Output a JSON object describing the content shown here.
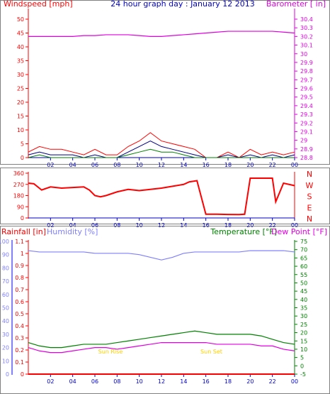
{
  "colors": {
    "wind": "#ff0000",
    "gust_dark": "#000080",
    "wind_green": "#008000",
    "baro": "#e000e0",
    "title": "#0000c8",
    "humidity": "#8080ff",
    "temp": "#008000",
    "dew": "#e000e0",
    "rain": "#ff0000",
    "dirlabels": "#ff0000",
    "xticks": "#0000c8",
    "sun": "#ffd000"
  },
  "chart_data": [
    {
      "type": "line",
      "title": "24 hour graph day : January 12 2013",
      "y_left_label": "Windspeed [mph]",
      "y_right_label": "Barometer [ in]",
      "y_left_ticks": [
        0,
        5,
        10,
        15,
        20,
        25,
        30,
        35,
        40,
        45,
        50
      ],
      "y_left_range": [
        0,
        50
      ],
      "y_right_ticks": [
        "28.8",
        "28.9",
        "29",
        "29.1",
        "29.2",
        "29.3",
        "29.4",
        "29.5",
        "29.6",
        "29.7",
        "29.8",
        "29.9",
        "30",
        "30.1",
        "30.2",
        "30.3",
        "30.4"
      ],
      "y_right_range": [
        28.8,
        30.4
      ],
      "x_ticks": [
        "02",
        "04",
        "06",
        "08",
        "10",
        "12",
        "14",
        "16",
        "18",
        "20",
        "22",
        "00"
      ],
      "x_hours": [
        0,
        1,
        2,
        3,
        4,
        5,
        6,
        7,
        8,
        9,
        10,
        11,
        12,
        13,
        14,
        15,
        16,
        17,
        18,
        19,
        20,
        21,
        22,
        23,
        24
      ],
      "series": [
        {
          "key": "barometer",
          "values": [
            30.2,
            30.2,
            30.2,
            30.2,
            30.2,
            30.21,
            30.21,
            30.22,
            30.22,
            30.22,
            30.21,
            30.2,
            30.2,
            30.21,
            30.22,
            30.23,
            30.24,
            30.25,
            30.26,
            30.26,
            30.26,
            30.26,
            30.26,
            30.25,
            30.24
          ]
        },
        {
          "key": "gust",
          "values": [
            2,
            4,
            3,
            3,
            2,
            1,
            3,
            1,
            1,
            4,
            6,
            9,
            6,
            5,
            4,
            3,
            0,
            0,
            2,
            0,
            3,
            1,
            2,
            1,
            2
          ]
        },
        {
          "key": "wind_avg",
          "values": [
            1,
            2,
            1,
            1,
            1,
            0,
            1,
            0,
            0,
            2,
            4,
            6,
            4,
            3,
            2,
            1,
            0,
            0,
            1,
            0,
            1,
            0,
            1,
            0,
            1
          ]
        },
        {
          "key": "wind_min",
          "values": [
            0,
            1,
            0,
            0,
            0,
            0,
            0,
            0,
            0,
            1,
            2,
            3,
            2,
            2,
            1,
            0,
            0,
            0,
            0,
            0,
            0,
            0,
            0,
            0,
            0
          ]
        }
      ]
    },
    {
      "type": "line",
      "y_left_ticks": [
        0,
        90,
        180,
        270,
        360
      ],
      "y_range": [
        0,
        360
      ],
      "y_right_labels": [
        "N",
        "W",
        "S",
        "E",
        "N"
      ],
      "x_ticks": [
        "02",
        "04",
        "06",
        "08",
        "10",
        "12",
        "14",
        "16",
        "18",
        "20",
        "22",
        "00"
      ],
      "series": [
        {
          "key": "direction",
          "x": [
            0,
            0.5,
            1.2,
            2,
            3,
            4,
            5,
            5.5,
            6,
            6.5,
            7,
            8,
            9,
            10,
            11,
            12,
            13,
            14,
            14.5,
            15.2,
            16,
            17,
            18,
            19,
            19.5,
            20,
            21,
            22,
            22.3,
            23,
            24
          ],
          "values": [
            280,
            275,
            225,
            250,
            240,
            245,
            250,
            225,
            180,
            170,
            180,
            210,
            230,
            220,
            230,
            240,
            255,
            270,
            290,
            300,
            30,
            30,
            28,
            27,
            30,
            320,
            320,
            320,
            130,
            280,
            260
          ]
        }
      ]
    },
    {
      "type": "line",
      "y_left_label": "Rainfall [in]",
      "humidity_label": "Humidity [%]",
      "temp_label": "Temperature [°F]",
      "dew_label": "Dew Point [°F]",
      "rain_ticks": [
        "0",
        "0.1",
        "0.2",
        "0.3",
        "0.4",
        "0.5",
        "0.6",
        "0.7",
        "0.8",
        "0.9",
        "1",
        "1.1"
      ],
      "humidity_ticks": [
        "0",
        "10",
        "20",
        "30",
        "40",
        "50",
        "60",
        "70",
        "80",
        "90",
        "100"
      ],
      "temp_ticks": [
        "-5",
        "0",
        "5",
        "10",
        "15",
        "20",
        "25",
        "30",
        "35",
        "40",
        "45",
        "50",
        "55",
        "60",
        "65",
        "70",
        "75"
      ],
      "temp_range": [
        -5,
        75
      ],
      "x_ticks": [
        "02",
        "04",
        "06",
        "08",
        "10",
        "12",
        "14",
        "16",
        "18",
        "20",
        "22",
        "00"
      ],
      "sunrise_label": "Sun Rise",
      "sunset_label": "Sun Set",
      "sunrise_hour": 7.4,
      "sunset_hour": 16.5,
      "series": [
        {
          "key": "humidity",
          "values": [
            93,
            92,
            92,
            92,
            92,
            92,
            91,
            91,
            91,
            91,
            90,
            88,
            86,
            88,
            91,
            92,
            92,
            92,
            92,
            92,
            93,
            93,
            93,
            93,
            92
          ]
        },
        {
          "key": "temperature",
          "values": [
            14,
            12,
            11,
            11,
            12,
            13,
            13,
            13,
            14,
            15,
            16,
            17,
            18,
            19,
            20,
            21,
            20,
            19,
            19,
            19,
            19,
            18,
            16,
            14,
            13
          ]
        },
        {
          "key": "dew_point",
          "values": [
            11,
            9,
            8,
            8,
            9,
            10,
            11,
            11,
            10,
            11,
            12,
            13,
            14,
            14,
            14,
            14,
            14,
            13,
            13,
            13,
            13,
            12,
            12,
            10,
            9
          ]
        },
        {
          "key": "rainfall",
          "values": [
            0,
            0,
            0,
            0,
            0,
            0,
            0,
            0,
            0,
            0,
            0,
            0,
            0,
            0,
            0,
            0,
            0,
            0,
            0,
            0,
            0,
            0,
            0,
            0,
            0
          ]
        }
      ]
    }
  ]
}
